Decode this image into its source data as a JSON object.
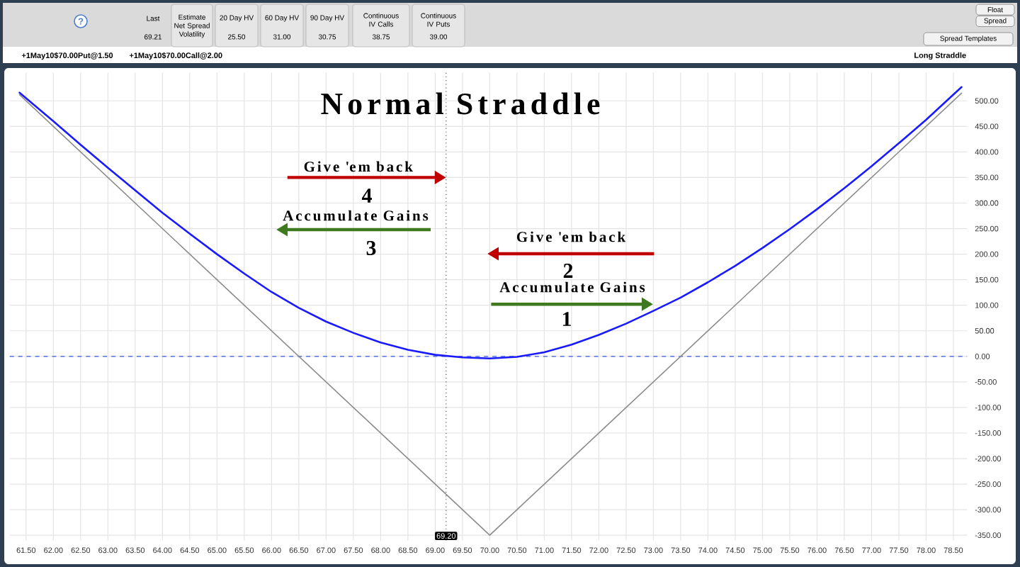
{
  "chart_data": {
    "type": "line",
    "title": "Normal Straddle",
    "annotations": [
      "Last",
      "69.21",
      "Estimate Net Spread Volatility",
      "20 Day HV",
      "25.50",
      "60 Day HV",
      "31.00",
      "90 Day HV",
      "30.75",
      "Continuous IV Calls",
      "38.75",
      "Continuous IV Puts",
      "39.00",
      "Float",
      "Spread",
      "Spread Templates",
      "+1May10$70.00Put@1.50",
      "+1May10$70.00Call@2.00",
      "Long Straddle",
      {
        "text": "Give 'em back",
        "x": 69.2,
        "y": 350
      },
      "4",
      "Accumulate Gains",
      "3",
      "Give 'em back",
      "2",
      "Accumulate Gains",
      "1",
      "?"
    ],
    "series": [
      {
        "color": "#1a1aff",
        "x": [
          61.38,
          62,
          62.5,
          63,
          63.5,
          64,
          64.5,
          65,
          65.5,
          66,
          66.5,
          67,
          67.5,
          68,
          68.5,
          69,
          69.5,
          70,
          70.5,
          71,
          71.5,
          72,
          72.5,
          73,
          73.5,
          74,
          74.5,
          75,
          75.5,
          76,
          76.5,
          77,
          77.5,
          78,
          78.65
        ],
        "values": [
          516,
          460,
          414,
          369,
          325,
          281,
          240,
          200,
          162,
          126,
          95,
          68,
          46,
          27,
          13,
          3,
          -2,
          -4,
          -1,
          8,
          23,
          42,
          64,
          89,
          115,
          145,
          177,
          212,
          249,
          288,
          329,
          372,
          417,
          463,
          527
        ]
      },
      {
        "color": "#8c8c8c",
        "x": [
          61.38,
          70,
          78.65
        ],
        "values": [
          512,
          -350,
          515
        ]
      }
    ],
    "xlim": [
      61.2,
      78.75
    ],
    "ylim": [
      -360,
      555
    ],
    "xticks": [
      {
        "value": 61.5,
        "label": "61.50"
      },
      {
        "value": 62,
        "label": "62.00"
      },
      {
        "value": 62.5,
        "label": "62.50"
      },
      {
        "value": 63,
        "label": "63.00"
      },
      {
        "value": 63.5,
        "label": "63.50"
      },
      {
        "value": 64,
        "label": "64.00"
      },
      {
        "value": 64.5,
        "label": "64.50"
      },
      {
        "value": 65,
        "label": "65.00"
      },
      {
        "value": 65.5,
        "label": "65.50"
      },
      {
        "value": 66,
        "label": "66.00"
      },
      {
        "value": 66.5,
        "label": "66.50"
      },
      {
        "value": 67,
        "label": "67.00"
      },
      {
        "value": 67.5,
        "label": "67.50"
      },
      {
        "value": 68,
        "label": "68.00"
      },
      {
        "value": 68.5,
        "label": "68.50"
      },
      {
        "value": 69,
        "label": "69.00"
      },
      {
        "value": 69.5,
        "label": "69.50"
      },
      {
        "value": 70,
        "label": "70.00"
      },
      {
        "value": 70.5,
        "label": "70.50"
      },
      {
        "value": 71,
        "label": "71.00"
      },
      {
        "value": 71.5,
        "label": "71.50"
      },
      {
        "value": 72,
        "label": "72.00"
      },
      {
        "value": 72.5,
        "label": "72.50"
      },
      {
        "value": 73,
        "label": "73.00"
      },
      {
        "value": 73.5,
        "label": "73.50"
      },
      {
        "value": 74,
        "label": "74.00"
      },
      {
        "value": 74.5,
        "label": "74.50"
      },
      {
        "value": 75,
        "label": "75.00"
      },
      {
        "value": 75.5,
        "label": "75.50"
      },
      {
        "value": 76,
        "label": "76.00"
      },
      {
        "value": 76.5,
        "label": "76.50"
      },
      {
        "value": 77,
        "label": "77.00"
      },
      {
        "value": 77.5,
        "label": "77.50"
      },
      {
        "value": 78,
        "label": "78.00"
      },
      {
        "value": 78.5,
        "label": "78.50"
      }
    ],
    "yticks": [
      {
        "value": -350,
        "label": "-350.00"
      },
      {
        "value": -300,
        "label": "-300.00"
      },
      {
        "value": -250,
        "label": "-250.00"
      },
      {
        "value": -200,
        "label": "-200.00"
      },
      {
        "value": -150,
        "label": "-150.00"
      },
      {
        "value": -100,
        "label": "-100.00"
      },
      {
        "value": -50,
        "label": "-50.00"
      },
      {
        "value": 0,
        "label": "0.00"
      },
      {
        "value": 50,
        "label": "50.00"
      },
      {
        "value": 100,
        "label": "100.00"
      },
      {
        "value": 150,
        "label": "150.00"
      },
      {
        "value": 200,
        "label": "200.00"
      },
      {
        "value": 250,
        "label": "250.00"
      },
      {
        "value": 300,
        "label": "300.00"
      },
      {
        "value": 350,
        "label": "350.00"
      },
      {
        "value": 400,
        "label": "400.00"
      },
      {
        "value": 450,
        "label": "450.00"
      },
      {
        "value": 500,
        "label": "500.00"
      }
    ],
    "grid": true,
    "ref_lines": [
      {
        "axis": "x",
        "value": 69.2,
        "label": "69.20",
        "color": "#555555",
        "line_style": "dotted"
      },
      {
        "axis": "y",
        "value": 0,
        "color": "#3c5ee0",
        "line_style": "dashed"
      }
    ]
  }
}
